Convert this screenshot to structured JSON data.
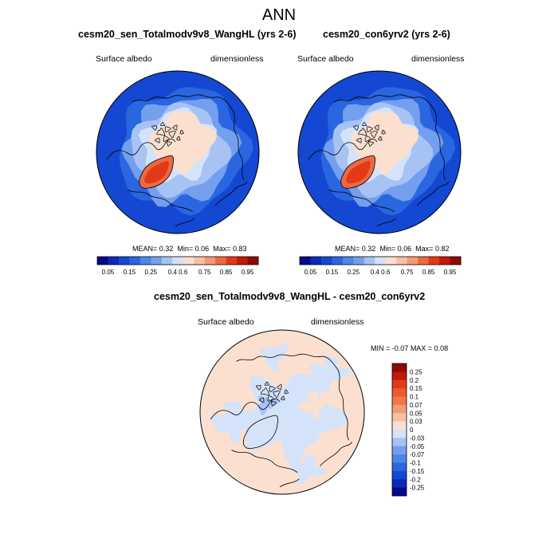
{
  "main_title": "ANN",
  "panels": [
    {
      "title": "cesm20_sen_Totalmodv9v8_WangHL (yrs 2-6)",
      "variable": "Surface albedo",
      "units": "dimensionless",
      "mean_label": "MEAN=",
      "mean": "0.32",
      "min_label": "Min=",
      "min": "0.06",
      "max_label": "Max=",
      "max": "0.83"
    },
    {
      "title": "cesm20_con6yrv2 (yrs 2-6)",
      "variable": "Surface albedo",
      "units": "dimensionless",
      "mean_label": "MEAN=",
      "mean": "0.32",
      "min_label": "Min=",
      "min": "0.06",
      "max_label": "Max=",
      "max": "0.82"
    }
  ],
  "diff_panel": {
    "title": "cesm20_sen_Totalmodv9v8_WangHL - cesm20_con6yrv2",
    "variable": "Surface albedo",
    "units": "dimensionless",
    "min_label": "MIN =",
    "min": "-0.07",
    "max_label": "MAX =",
    "max": "0.08"
  },
  "colorbar_main": {
    "labels": [
      "0.05",
      "0.15",
      "0.25",
      "0.4",
      "0.6",
      "0.75",
      "0.85",
      "0.95"
    ],
    "colors": [
      "#08088a",
      "#0a2ab8",
      "#1448d2",
      "#2a66e0",
      "#4c86ea",
      "#749fee",
      "#a7c3f4",
      "#d4e3fa",
      "#fbe0d0",
      "#f7c0a4",
      "#f39a75",
      "#ec6a42",
      "#e23a18",
      "#c01a08",
      "#8e0c04"
    ]
  },
  "colorbar_diff": {
    "labels": [
      "0.25",
      "0.2",
      "0.15",
      "0.1",
      "0.07",
      "0.05",
      "0.03",
      "0",
      "-0.03",
      "-0.05",
      "-0.07",
      "-0.1",
      "-0.15",
      "-0.2",
      "-0.25"
    ],
    "colors": [
      "#8e0c04",
      "#c01a08",
      "#e23a18",
      "#ec5a2e",
      "#f0784a",
      "#f39a75",
      "#f7c0a4",
      "#fbe0d0",
      "#d4e3fa",
      "#a7c3f4",
      "#749fee",
      "#4c86ea",
      "#2a66e0",
      "#1448d2",
      "#0a2ab8",
      "#08088a"
    ]
  },
  "map_colors": {
    "ocean_low": "#1448d2",
    "ocean_mid": "#2a66e0",
    "ice_edge": "#749fee",
    "ice_light": "#a7c3f4",
    "ice_pale": "#d4e3fa",
    "sea_ice": "#fbe0d0",
    "greenland_edge": "#ec6a42",
    "greenland_core": "#e23a18",
    "diff_positive": "#fbe0d0",
    "diff_negative": "#d4e3fa",
    "diff_neg_strong": "#a7c3f4"
  }
}
